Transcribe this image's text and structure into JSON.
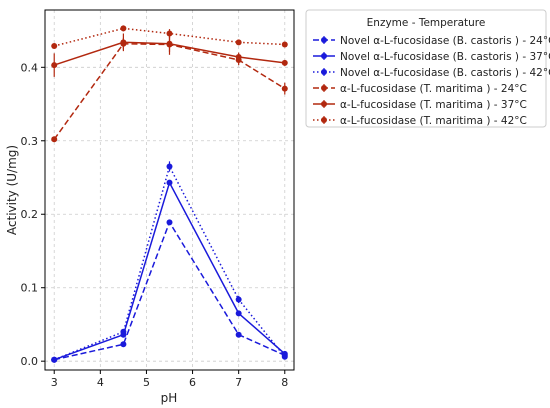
{
  "chart_data": {
    "type": "line",
    "xlabel": "pH",
    "ylabel": "Activity (U/mg)",
    "xlim": [
      2.8,
      8.2
    ],
    "ylim": [
      -0.012,
      0.478
    ],
    "xticks": [
      3,
      4,
      5,
      6,
      7,
      8
    ],
    "yticks": [
      0.0,
      0.1,
      0.2,
      0.3,
      0.4
    ],
    "ytick_labels": [
      "0.0",
      "0.1",
      "0.2",
      "0.3",
      "0.4"
    ],
    "grid": true,
    "legend": {
      "title": "Enzyme - Temperature",
      "placement": "outside-right-top"
    },
    "series": [
      {
        "name": "Novel α-L-fucosidase (B. castoris ) - 24°C",
        "color": "#1a1adb",
        "linestyle": "dashed",
        "x": [
          3,
          4.5,
          5.5,
          7,
          8
        ],
        "y": [
          0.002,
          0.023,
          0.189,
          0.036,
          0.008
        ],
        "err": [
          0,
          0,
          0,
          0,
          0
        ]
      },
      {
        "name": "Novel α-L-fucosidase (B. castoris ) - 37°C",
        "color": "#1a1adb",
        "linestyle": "solid",
        "x": [
          3,
          4.5,
          5.5,
          7,
          8
        ],
        "y": [
          0.002,
          0.036,
          0.243,
          0.065,
          0.01
        ],
        "err": [
          0,
          0,
          0,
          0,
          0
        ]
      },
      {
        "name": "Novel α-L-fucosidase (B. castoris ) - 42°C",
        "color": "#1a1adb",
        "linestyle": "dotted",
        "x": [
          3,
          4.5,
          5.5,
          7,
          8
        ],
        "y": [
          0.002,
          0.04,
          0.265,
          0.084,
          0.006
        ],
        "err": [
          0,
          0,
          0.007,
          0.005,
          0
        ]
      },
      {
        "name": "α-L-fucosidase (T. maritima ) - 24°C",
        "color": "#b2280f",
        "linestyle": "dashed",
        "x": [
          3,
          4.5,
          5.5,
          7,
          8
        ],
        "y": [
          0.302,
          0.432,
          0.431,
          0.41,
          0.371
        ],
        "err": [
          0.003,
          0.008,
          0.01,
          0.007,
          0.008
        ]
      },
      {
        "name": "α-L-fucosidase (T. maritima ) - 37°C",
        "color": "#b2280f",
        "linestyle": "solid",
        "x": [
          3,
          4.5,
          5.5,
          7,
          8
        ],
        "y": [
          0.403,
          0.434,
          0.432,
          0.414,
          0.406
        ],
        "err": [
          0.016,
          0.012,
          0.015,
          0.006,
          0.004
        ]
      },
      {
        "name": "α-L-fucosidase (T. maritima ) - 42°C",
        "color": "#b2280f",
        "linestyle": "dotted",
        "x": [
          3,
          4.5,
          5.5,
          7,
          8
        ],
        "y": [
          0.429,
          0.453,
          0.446,
          0.434,
          0.431
        ],
        "err": [
          0.003,
          0.004,
          0.006,
          0.003,
          0.003
        ]
      }
    ]
  }
}
